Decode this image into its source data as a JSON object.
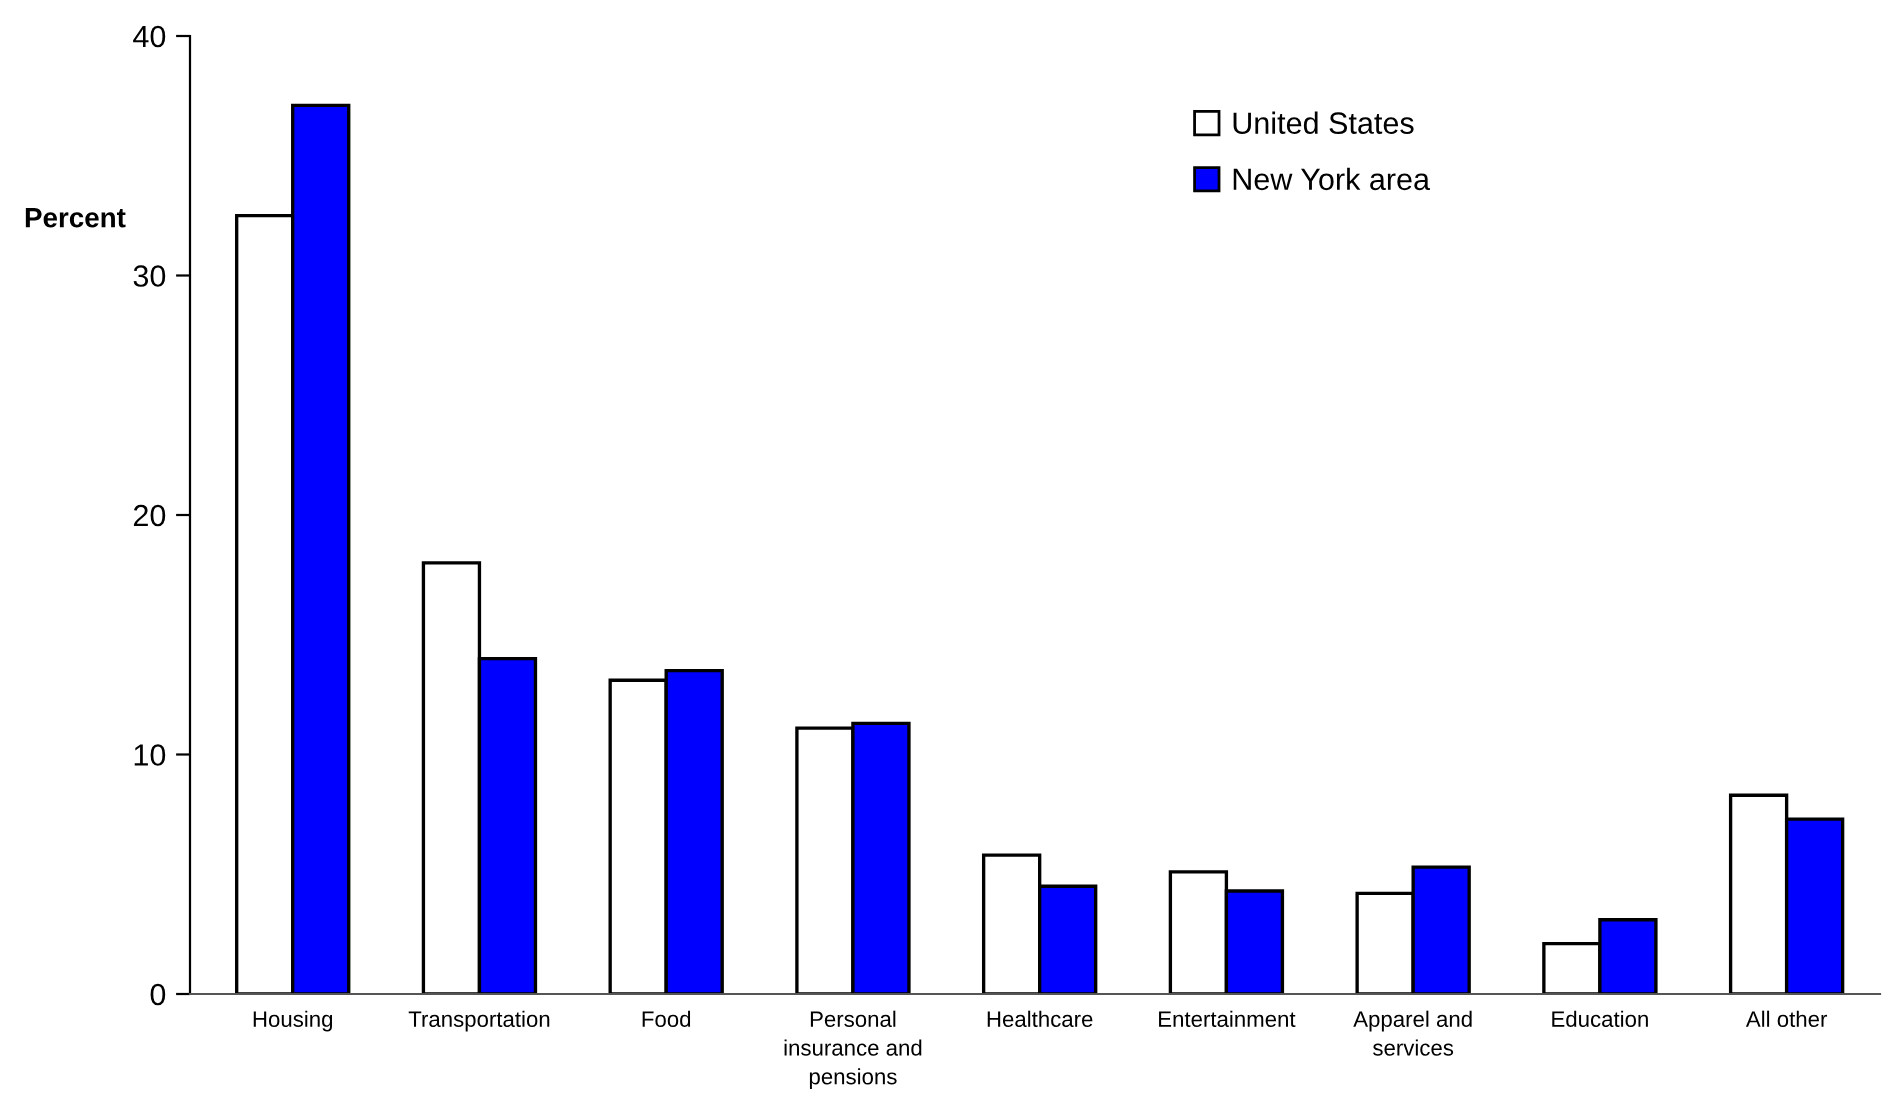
{
  "chart_data": {
    "type": "bar",
    "ylabel": "Percent",
    "categories": [
      "Housing",
      "Transportation",
      "Food",
      "Personal\ninsurance and\npensions",
      "Healthcare",
      "Entertainment",
      "Apparel and\nservices",
      "Education",
      "All other"
    ],
    "series": [
      {
        "name": "United States",
        "color": "#ffffff",
        "values": [
          32.5,
          18.0,
          13.1,
          11.1,
          5.8,
          5.1,
          4.2,
          2.1,
          8.3
        ]
      },
      {
        "name": "New York area",
        "color": "#0000ff",
        "values": [
          37.1,
          14.0,
          13.5,
          11.3,
          4.5,
          4.3,
          5.3,
          3.1,
          7.3
        ]
      }
    ],
    "ylim": [
      0,
      40
    ],
    "yticks": [
      0,
      10,
      20,
      30,
      40
    ],
    "grid": false,
    "legend": "top right"
  }
}
